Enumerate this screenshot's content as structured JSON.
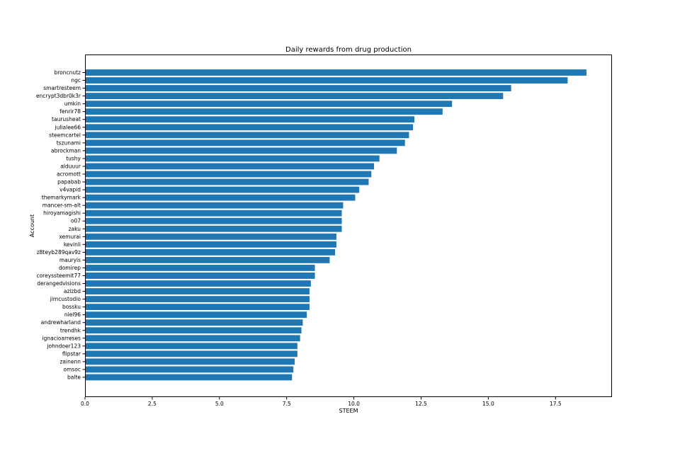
{
  "chart_data": {
    "type": "bar",
    "orientation": "horizontal",
    "title": "Daily rewards from drug production",
    "xlabel": "STEEM",
    "ylabel": "Account",
    "xlim": [
      0,
      19.6
    ],
    "xticks": [
      0.0,
      2.5,
      5.0,
      7.5,
      10.0,
      12.5,
      15.0,
      17.5
    ],
    "xtick_labels": [
      "0.0",
      "2.5",
      "5.0",
      "7.5",
      "10.0",
      "12.5",
      "15.0",
      "17.5"
    ],
    "grid": false,
    "bar_color": "#1f77b4",
    "categories": [
      "broncnutz",
      "ngc",
      "smartresteem",
      "encrypt3dbr0k3r",
      "umkin",
      "fenrir78",
      "taurusheat",
      "julialee66",
      "steemcartel",
      "tszunami",
      "abrockman",
      "tushy",
      "alduuur",
      "acromott",
      "papabab",
      "v4vapid",
      "themarkymark",
      "mancer-sm-alt",
      "hiroyamagishi",
      "o07",
      "zaku",
      "xemurai",
      "kevinli",
      "z8teyb289qav9z",
      "mauryis",
      "domirep",
      "coreyssteemit77",
      "derangedvisions",
      "azizbd",
      "jimcustodio",
      "bossku",
      "niel96",
      "andrewharland",
      "trendhk",
      "ignacioarreses",
      "johndoer123",
      "flipstar",
      "zainenn",
      "omsoc",
      "balte"
    ],
    "values": [
      18.65,
      17.95,
      15.85,
      15.55,
      13.65,
      13.3,
      12.25,
      12.2,
      12.05,
      11.9,
      11.6,
      10.95,
      10.75,
      10.65,
      10.55,
      10.2,
      10.05,
      9.6,
      9.55,
      9.55,
      9.55,
      9.35,
      9.35,
      9.3,
      9.1,
      8.55,
      8.55,
      8.4,
      8.35,
      8.35,
      8.35,
      8.25,
      8.1,
      8.05,
      8.0,
      7.9,
      7.9,
      7.8,
      7.75,
      7.7
    ]
  }
}
